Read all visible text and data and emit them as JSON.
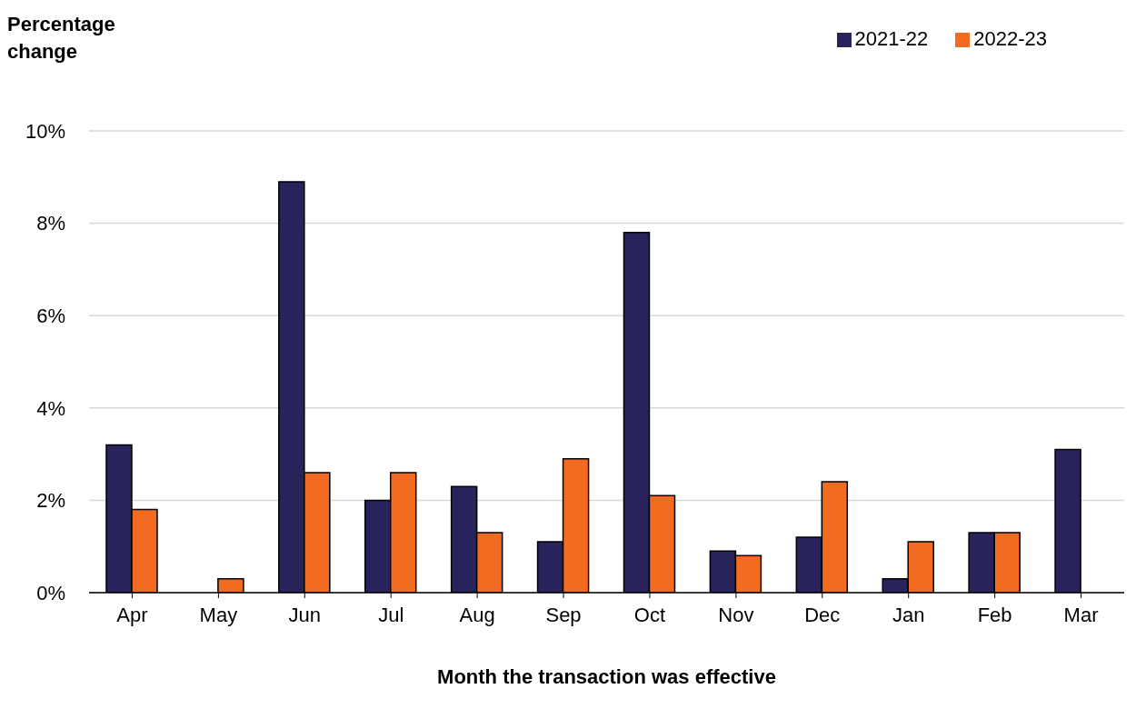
{
  "chart_data": {
    "type": "bar",
    "ylabel": "Percentage change",
    "xlabel": "Month the transaction was effective",
    "categories": [
      "Apr",
      "May",
      "Jun",
      "Jul",
      "Aug",
      "Sep",
      "Oct",
      "Nov",
      "Dec",
      "Jan",
      "Feb",
      "Mar"
    ],
    "series": [
      {
        "name": "2021-22",
        "color": "#29235c",
        "values": [
          3.2,
          null,
          8.9,
          2.0,
          2.3,
          1.1,
          7.8,
          0.9,
          1.2,
          0.3,
          1.3,
          3.1
        ]
      },
      {
        "name": "2022-23",
        "color": "#f26b21",
        "values": [
          1.8,
          0.3,
          2.6,
          2.6,
          1.3,
          2.9,
          2.1,
          0.8,
          2.4,
          1.1,
          1.3,
          null
        ]
      }
    ],
    "ylim": [
      0,
      10
    ],
    "yticks": [
      {
        "value": 0,
        "label": "0%"
      },
      {
        "value": 2,
        "label": "2%"
      },
      {
        "value": 4,
        "label": "4%"
      },
      {
        "value": 6,
        "label": "6%"
      },
      {
        "value": 8,
        "label": "8%"
      },
      {
        "value": 10,
        "label": "10%"
      }
    ],
    "grid": "y",
    "legend": "top right"
  }
}
